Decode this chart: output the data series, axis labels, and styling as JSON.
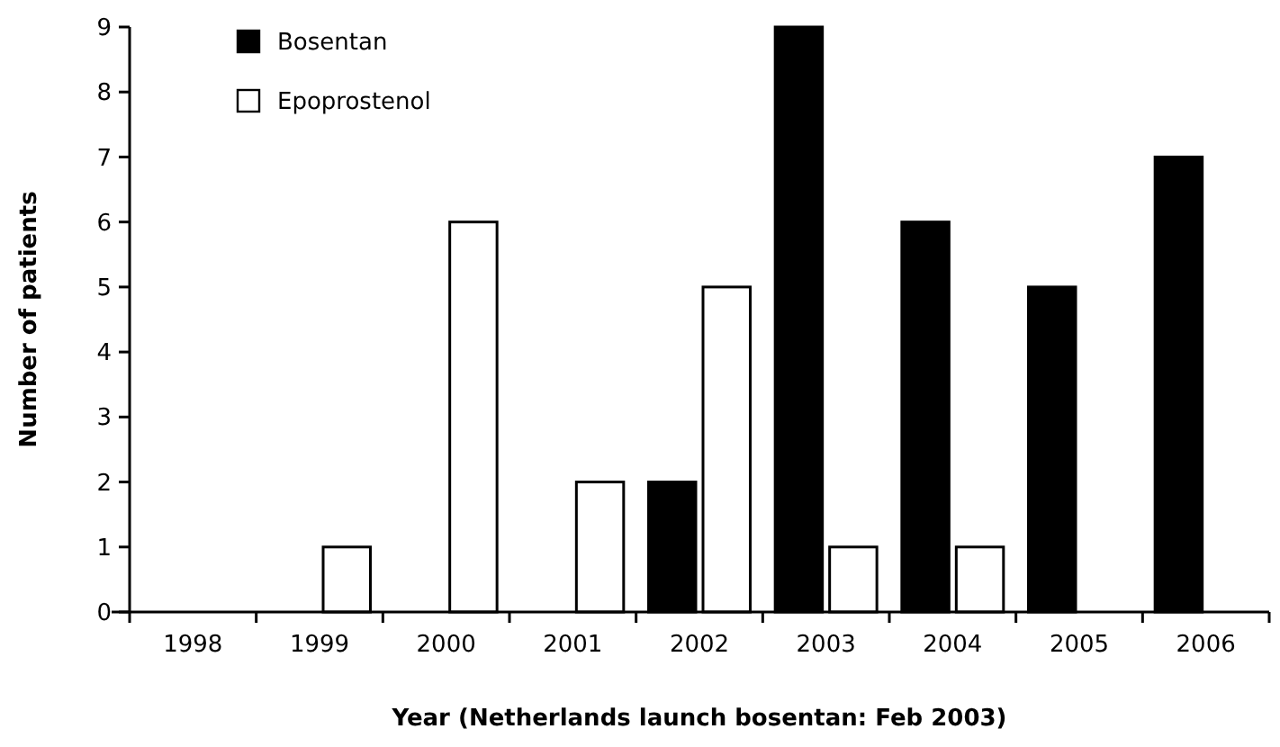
{
  "chart_data": {
    "type": "bar",
    "xlabel": "Year (Netherlands launch bosentan: Feb 2003)",
    "ylabel": "Number of patients",
    "categories": [
      "1998",
      "1999",
      "2000",
      "2001",
      "2002",
      "2003",
      "2004",
      "2005",
      "2006"
    ],
    "series": [
      {
        "name": "Bosentan",
        "color": "#000000",
        "values": [
          0,
          0,
          0,
          0,
          2,
          9,
          6,
          5,
          7
        ]
      },
      {
        "name": "Epoprostenol",
        "color": "#ffffff",
        "values": [
          0,
          1,
          6,
          2,
          5,
          1,
          1,
          0,
          0
        ]
      }
    ],
    "ylim": [
      0,
      9
    ],
    "yticks": [
      0,
      1,
      2,
      3,
      4,
      5,
      6,
      7,
      8,
      9
    ],
    "grid": false,
    "legend": "top left"
  }
}
